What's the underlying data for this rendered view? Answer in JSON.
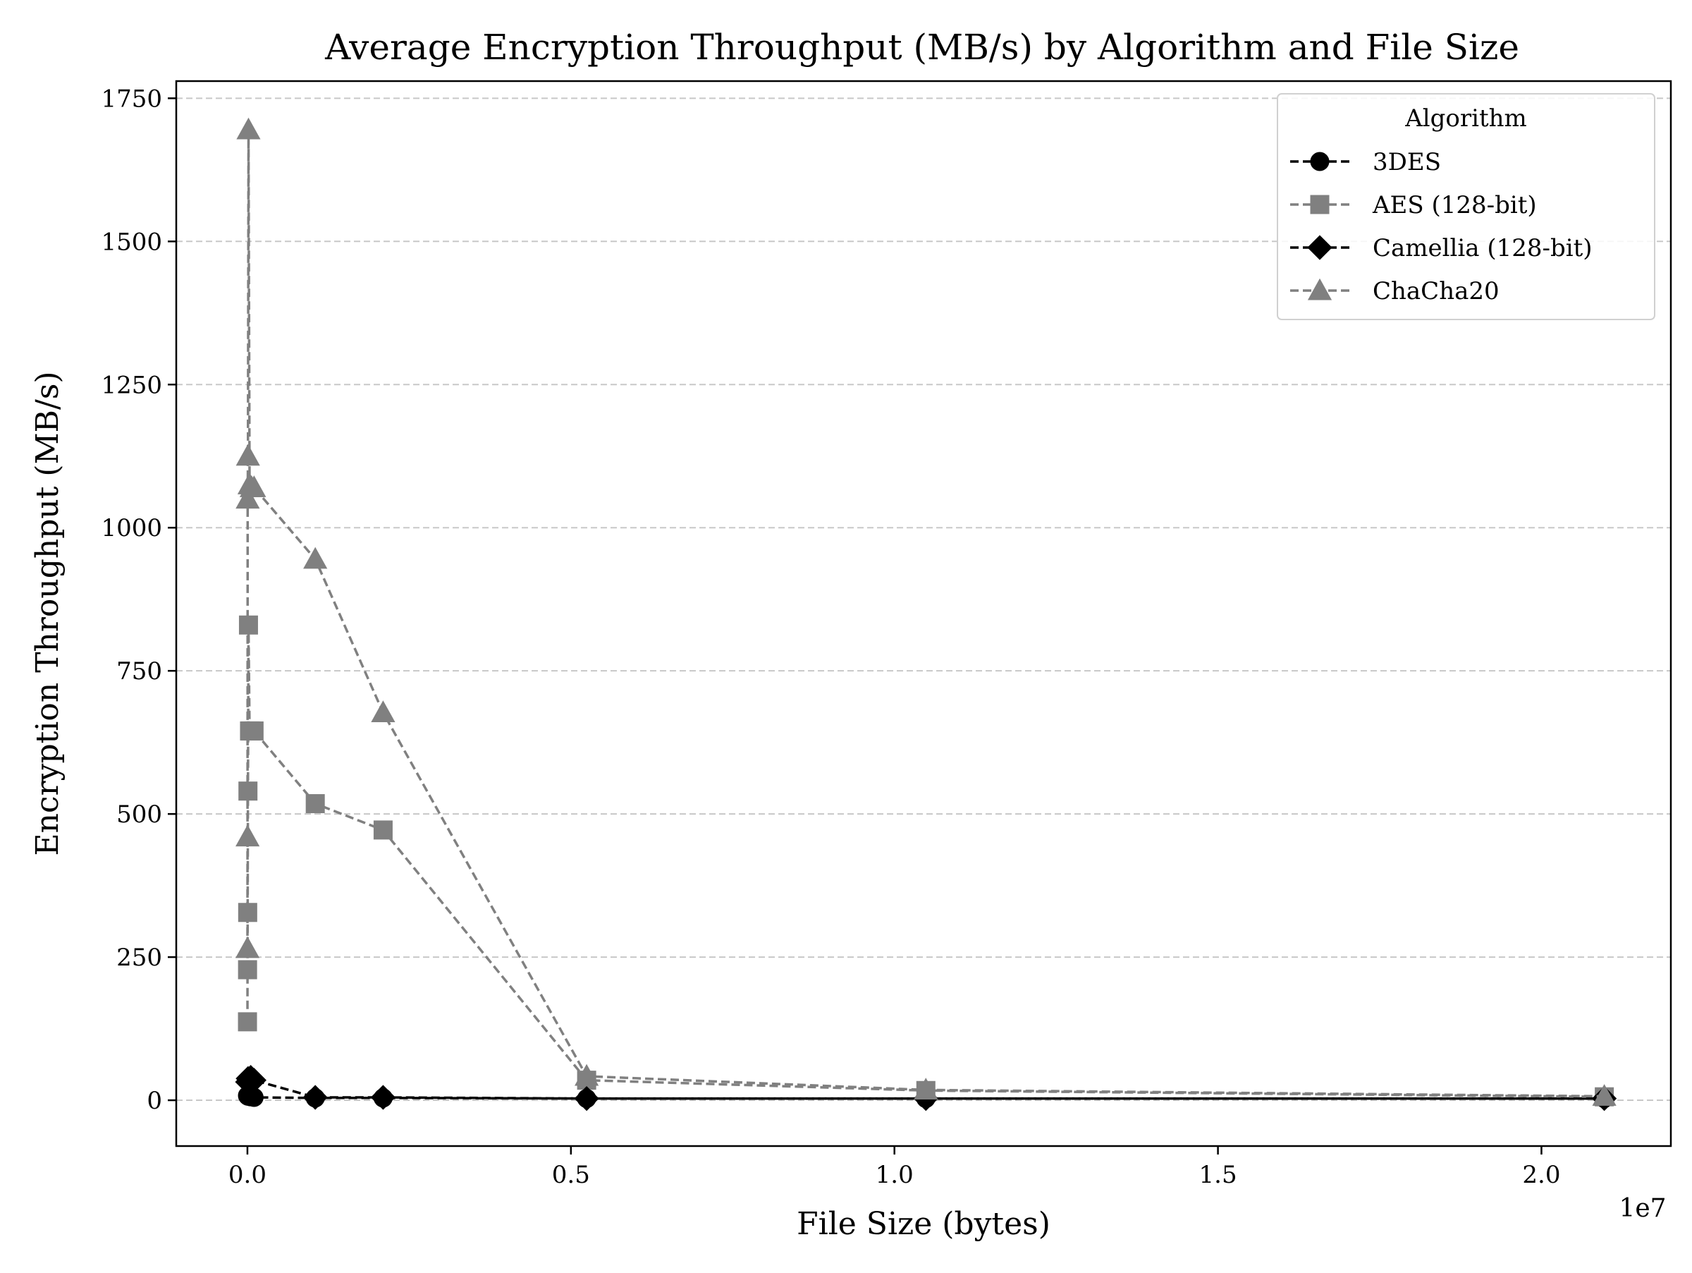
{
  "chart_data": {
    "type": "line",
    "title": "Average Encryption Throughput (MB/s) by Algorithm and File Size",
    "xlabel": "File Size (bytes)",
    "ylabel": "Encryption Throughput (MB/s)",
    "x_offset_label": "1e7",
    "xlim": [
      -1100000,
      22000000
    ],
    "ylim": [
      -80,
      1780
    ],
    "x_ticks": [
      0,
      5000000,
      10000000,
      15000000,
      20000000
    ],
    "x_tick_labels": [
      "0.0",
      "0.5",
      "1.0",
      "1.5",
      "2.0"
    ],
    "y_ticks": [
      0,
      250,
      500,
      750,
      1000,
      1250,
      1500,
      1750
    ],
    "y_tick_labels": [
      "0",
      "250",
      "500",
      "750",
      "1000",
      "1250",
      "1500",
      "1750"
    ],
    "grid": "y, dashed",
    "legend": {
      "title": "Algorithm",
      "position": "top-right"
    },
    "series": [
      {
        "name": "3DES",
        "marker": "circle",
        "color": "#000000",
        "x": [
          1024,
          10240,
          51200,
          102400,
          1048576,
          2097152,
          5242880,
          10485760,
          20971520
        ],
        "y": [
          8,
          7,
          6,
          5,
          4,
          4,
          3,
          3,
          3
        ]
      },
      {
        "name": "AES (128-bit)",
        "marker": "square",
        "color": "#808080",
        "x": [
          1024,
          2048,
          4096,
          8192,
          16384,
          32768,
          51200,
          102400,
          1048576,
          2097152,
          5242880,
          10485760,
          20971520
        ],
        "y": [
          137,
          228,
          328,
          540,
          830,
          645,
          645,
          645,
          518,
          472,
          35,
          17,
          6
        ]
      },
      {
        "name": "Camellia (128-bit)",
        "marker": "diamond",
        "color": "#000000",
        "x": [
          1024,
          10240,
          51200,
          102400,
          1048576,
          2097152,
          5242880,
          10485760,
          20971520
        ],
        "y": [
          32,
          38,
          40,
          35,
          5,
          5,
          3,
          3,
          3
        ]
      },
      {
        "name": "ChaCha20",
        "marker": "triangle",
        "color": "#808080",
        "x": [
          1024,
          2048,
          4096,
          8192,
          16384,
          32768,
          65536,
          102400,
          1048576,
          2097152,
          5242880,
          10485760,
          20971520
        ],
        "y": [
          265,
          460,
          1050,
          1125,
          1695,
          1075,
          1070,
          1070,
          945,
          677,
          42,
          18,
          7
        ]
      }
    ]
  }
}
